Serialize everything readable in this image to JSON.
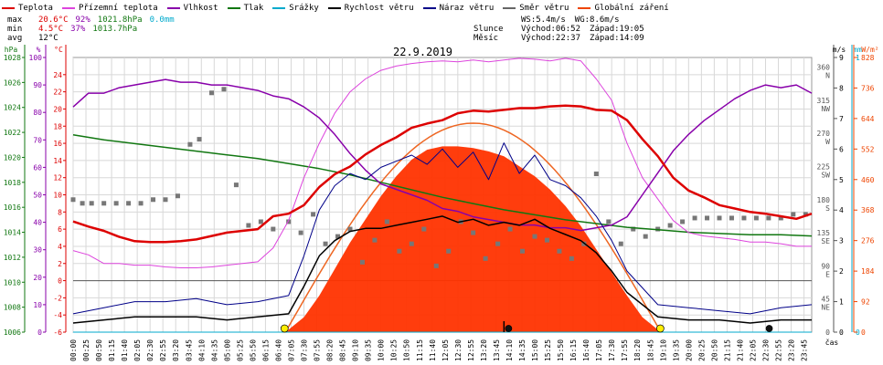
{
  "legend": [
    {
      "label": "Teplota",
      "color": "#dd0000"
    },
    {
      "label": "Přízemní teplota",
      "color": "#dd44dd"
    },
    {
      "label": "Vlhkost",
      "color": "#8800aa"
    },
    {
      "label": "Tlak",
      "color": "#117711"
    },
    {
      "label": "Srážky",
      "color": "#00aacc"
    },
    {
      "label": "Rychlost větru",
      "color": "#000000"
    },
    {
      "label": "Náraz větru",
      "color": "#000088"
    },
    {
      "label": "Směr větru",
      "color": "#666666"
    },
    {
      "label": "Globální záření",
      "color": "#ee4400"
    }
  ],
  "stats": {
    "max": {
      "label": "max",
      "temp": "20.6°C",
      "hum": "92%",
      "press": "1021.8hPa",
      "rain": "0.0mm"
    },
    "min": {
      "label": "min",
      "temp": "4.5°C",
      "hum": "37%",
      "press": "1013.7hPa"
    },
    "avg": {
      "label": "avg",
      "temp": "12°C"
    }
  },
  "astro": {
    "ws": "WS:5.4m/s",
    "wg": "WG:8.6m/s",
    "sun_label": "Slunce",
    "sunrise": "Východ:06:52",
    "sunset": "Západ:19:05",
    "moon_label": "Měsíc",
    "moonrise": "Východ:22:37",
    "moonset": "Západ:14:09"
  },
  "chart_data": {
    "type": "line",
    "title": "22.9.2019",
    "x_axis_label": "čas",
    "x_unit": "hours",
    "xlim": [
      0,
      24
    ],
    "x_tick_labels": [
      "00:00",
      "00:25",
      "00:50",
      "01:15",
      "01:40",
      "02:05",
      "02:30",
      "02:55",
      "03:20",
      "03:45",
      "04:10",
      "04:35",
      "05:00",
      "05:25",
      "05:50",
      "06:15",
      "06:40",
      "07:05",
      "07:30",
      "07:55",
      "08:20",
      "08:45",
      "09:10",
      "09:35",
      "10:00",
      "10:25",
      "10:50",
      "11:15",
      "11:40",
      "12:05",
      "12:30",
      "12:55",
      "13:20",
      "13:45",
      "14:10",
      "14:35",
      "15:00",
      "15:25",
      "15:50",
      "16:15",
      "16:40",
      "17:05",
      "17:30",
      "17:55",
      "18:20",
      "18:45",
      "19:10",
      "19:35",
      "20:00",
      "20:25",
      "20:50",
      "21:15",
      "21:40",
      "22:05",
      "22:30",
      "22:55",
      "23:20",
      "23:45"
    ],
    "axes": {
      "pressure": {
        "unit": "hPa",
        "ylim": [
          1006,
          1028
        ],
        "ticks": [
          1006,
          1008,
          1010,
          1012,
          1014,
          1016,
          1018,
          1020,
          1022,
          1024,
          1026,
          1028
        ],
        "color": "#117711"
      },
      "humidity": {
        "unit": "%",
        "ylim": [
          0,
          100
        ],
        "ticks": [
          0,
          10,
          20,
          30,
          40,
          50,
          60,
          70,
          80,
          90,
          100
        ],
        "color": "#8800aa"
      },
      "temperature": {
        "unit": "°C",
        "ylim": [
          -6,
          26
        ],
        "ticks": [
          -6,
          -4,
          -2,
          0,
          2,
          4,
          6,
          8,
          10,
          12,
          14,
          16,
          18,
          20,
          22,
          24
        ],
        "color": "#dd0000"
      },
      "wind_direction": {
        "unit": "°",
        "ticks": [
          {
            "v": 0,
            "lbl": "0"
          },
          {
            "v": 45,
            "lbl": "45 NE"
          },
          {
            "v": 90,
            "lbl": "90 E"
          },
          {
            "v": 135,
            "lbl": "135 SE"
          },
          {
            "v": 180,
            "lbl": "180 S"
          },
          {
            "v": 225,
            "lbl": "225 SW"
          },
          {
            "v": 270,
            "lbl": "270 W"
          },
          {
            "v": 315,
            "lbl": "315 NW"
          },
          {
            "v": 360,
            "lbl": "360 N"
          }
        ]
      },
      "wind_speed": {
        "unit": "m/s",
        "ylim": [
          0,
          9
        ],
        "ticks": [
          0,
          1,
          2,
          3,
          4,
          5,
          6,
          7,
          8,
          9
        ]
      },
      "rain": {
        "unit": "mm",
        "ylim": [
          0,
          1
        ],
        "ticks": [
          0,
          1
        ],
        "color": "#00aacc"
      },
      "radiation": {
        "unit": "W/m²",
        "ylim": [
          0,
          828
        ],
        "ticks": [
          0,
          92,
          184,
          276,
          368,
          460,
          552,
          644,
          736,
          828
        ],
        "color": "#ee4400"
      }
    },
    "series": [
      {
        "name": "Teplota",
        "axis": "temperature",
        "color": "#dd0000",
        "x": [
          0,
          0.5,
          1,
          1.5,
          2,
          2.5,
          3,
          3.5,
          4,
          4.5,
          5,
          5.5,
          6,
          6.5,
          7,
          7.5,
          8,
          8.5,
          9,
          9.5,
          10,
          10.5,
          11,
          11.5,
          12,
          12.5,
          13,
          13.5,
          14,
          14.5,
          15,
          15.5,
          16,
          16.5,
          17,
          17.5,
          18,
          18.5,
          19,
          19.5,
          20,
          20.5,
          21,
          21.5,
          22,
          22.5,
          23,
          23.5,
          24
        ],
        "y": [
          6.9,
          6.3,
          5.8,
          5.1,
          4.6,
          4.5,
          4.5,
          4.6,
          4.8,
          5.2,
          5.6,
          5.8,
          6.0,
          7.5,
          7.8,
          8.8,
          10.9,
          12.4,
          13.3,
          14.7,
          15.8,
          16.7,
          17.8,
          18.3,
          18.7,
          19.5,
          19.8,
          19.7,
          19.9,
          20.1,
          20.1,
          20.3,
          20.4,
          20.3,
          19.9,
          19.8,
          18.7,
          16.5,
          14.5,
          12.0,
          10.5,
          9.7,
          8.8,
          8.4,
          8.0,
          7.8,
          7.5,
          7.2,
          7.8
        ]
      },
      {
        "name": "Přízemní teplota",
        "axis": "temperature",
        "color": "#dd44dd",
        "x": [
          0,
          0.5,
          1,
          1.5,
          2,
          2.5,
          3,
          3.5,
          4,
          4.5,
          5,
          5.5,
          6,
          6.5,
          7,
          7.5,
          8,
          8.5,
          9,
          9.5,
          10,
          10.5,
          11,
          11.5,
          12,
          12.5,
          13,
          13.5,
          14,
          14.5,
          15,
          15.5,
          16,
          16.5,
          17,
          17.5,
          18,
          18.5,
          19,
          19.5,
          20,
          20.5,
          21,
          21.5,
          22,
          22.5,
          23,
          23.5,
          24
        ],
        "y": [
          3.5,
          3.0,
          2.0,
          2.0,
          1.8,
          1.8,
          1.6,
          1.5,
          1.5,
          1.6,
          1.8,
          2.0,
          2.2,
          3.8,
          7.0,
          12.0,
          16.0,
          19.5,
          22.0,
          23.5,
          24.5,
          25.0,
          25.3,
          25.5,
          25.6,
          25.5,
          25.7,
          25.5,
          25.7,
          25.9,
          25.8,
          25.6,
          25.9,
          25.6,
          23.5,
          21.0,
          16.0,
          12.0,
          9.5,
          7.0,
          5.6,
          5.2,
          5.0,
          4.8,
          4.5,
          4.5,
          4.3,
          4.0,
          4.0
        ]
      },
      {
        "name": "Vlhkost",
        "axis": "humidity",
        "color": "#8800aa",
        "x": [
          0,
          0.5,
          1,
          1.5,
          2,
          2.5,
          3,
          3.5,
          4,
          4.5,
          5,
          5.5,
          6,
          6.5,
          7,
          7.5,
          8,
          8.5,
          9,
          9.5,
          10,
          10.5,
          11,
          11.5,
          12,
          12.5,
          13,
          13.5,
          14,
          14.5,
          15,
          15.5,
          16,
          16.5,
          17,
          17.5,
          18,
          18.5,
          19,
          19.5,
          20,
          20.5,
          21,
          21.5,
          22,
          22.5,
          23,
          23.5,
          24
        ],
        "y": [
          82,
          87,
          87,
          89,
          90,
          91,
          92,
          91,
          91,
          90,
          90,
          89,
          88,
          86,
          85,
          82,
          78,
          72,
          65,
          59,
          54,
          52,
          50,
          48,
          45,
          44,
          42,
          41,
          40,
          39,
          39,
          38,
          38,
          37,
          38,
          39,
          42,
          50,
          58,
          66,
          72,
          77,
          81,
          85,
          88,
          90,
          89,
          90,
          87
        ]
      },
      {
        "name": "Tlak",
        "axis": "pressure",
        "color": "#117711",
        "x": [
          0,
          1,
          2,
          3,
          4,
          5,
          6,
          7,
          8,
          9,
          10,
          11,
          12,
          13,
          14,
          15,
          16,
          17,
          18,
          19,
          20,
          21,
          22,
          23,
          24
        ],
        "y": [
          1021.8,
          1021.4,
          1021.1,
          1020.8,
          1020.5,
          1020.2,
          1019.9,
          1019.5,
          1019.1,
          1018.6,
          1018.0,
          1017.4,
          1016.8,
          1016.3,
          1015.8,
          1015.4,
          1015.0,
          1014.7,
          1014.4,
          1014.2,
          1014.0,
          1013.9,
          1013.8,
          1013.8,
          1013.7
        ]
      },
      {
        "name": "Srážky",
        "axis": "rain",
        "color": "#00aacc",
        "x": [
          0,
          24
        ],
        "y": [
          0,
          0
        ]
      },
      {
        "name": "Rychlost větru",
        "axis": "wind_speed",
        "color": "#000000",
        "x": [
          0,
          1,
          2,
          3,
          4,
          5,
          6,
          7,
          7.5,
          8,
          8.5,
          9,
          9.5,
          10,
          10.5,
          11,
          11.5,
          12,
          12.5,
          13,
          13.5,
          14,
          14.5,
          15,
          15.5,
          16,
          16.5,
          17,
          17.5,
          18,
          19,
          20,
          21,
          22,
          23,
          24
        ],
        "y": [
          0.3,
          0.4,
          0.5,
          0.5,
          0.5,
          0.4,
          0.5,
          0.6,
          1.5,
          2.5,
          3.0,
          3.3,
          3.4,
          3.4,
          3.5,
          3.6,
          3.7,
          3.8,
          3.6,
          3.7,
          3.5,
          3.6,
          3.5,
          3.7,
          3.4,
          3.2,
          3.0,
          2.6,
          2.0,
          1.3,
          0.5,
          0.4,
          0.4,
          0.3,
          0.4,
          0.4
        ]
      },
      {
        "name": "Náraz větru",
        "axis": "wind_speed",
        "color": "#000088",
        "x": [
          0,
          1,
          2,
          3,
          4,
          5,
          6,
          7,
          7.5,
          8,
          8.5,
          9,
          9.5,
          10,
          10.5,
          11,
          11.5,
          12,
          12.5,
          13,
          13.5,
          14,
          14.5,
          15,
          15.5,
          16,
          16.5,
          17,
          17.5,
          18,
          19,
          20,
          21,
          22,
          23,
          24
        ],
        "y": [
          0.6,
          0.8,
          1.0,
          1.0,
          1.1,
          0.9,
          1.0,
          1.2,
          2.5,
          4.0,
          4.8,
          5.2,
          5.0,
          5.4,
          5.6,
          5.8,
          5.5,
          6.0,
          5.4,
          5.9,
          5.0,
          6.2,
          5.2,
          5.8,
          5.0,
          4.8,
          4.4,
          3.8,
          3.0,
          2.0,
          0.9,
          0.8,
          0.7,
          0.6,
          0.8,
          0.9
        ]
      },
      {
        "name": "Globální záření",
        "axis": "radiation",
        "color": "#ee4400",
        "x": [
          6.9,
          7.5,
          8,
          8.5,
          9,
          9.5,
          10,
          10.5,
          11,
          11.5,
          12,
          12.5,
          13,
          13.5,
          14,
          14.5,
          15,
          15.5,
          16,
          16.5,
          17,
          17.5,
          18,
          18.5,
          19.1
        ],
        "y": [
          0,
          45,
          110,
          190,
          270,
          340,
          410,
          470,
          520,
          550,
          560,
          560,
          555,
          545,
          530,
          500,
          470,
          430,
          380,
          320,
          250,
          180,
          110,
          45,
          0
        ]
      }
    ],
    "wind_direction_points": {
      "x": [
        0,
        0.3,
        0.6,
        1,
        1.4,
        1.8,
        2.2,
        2.6,
        3.0,
        3.4,
        3.8,
        4.1,
        4.5,
        4.9,
        5.3,
        5.7,
        6.1,
        6.5,
        7.0,
        7.4,
        7.8,
        8.2,
        8.6,
        9.0,
        9.4,
        9.8,
        10.2,
        10.6,
        11.0,
        11.4,
        11.8,
        12.2,
        12.6,
        13.0,
        13.4,
        13.8,
        14.2,
        14.6,
        15.0,
        15.4,
        15.8,
        16.2,
        16.6,
        17.0,
        17.4,
        17.8,
        18.2,
        18.6,
        19.0,
        19.4,
        19.8,
        20.2,
        20.6,
        21.0,
        21.4,
        21.8,
        22.2,
        22.6,
        23.0,
        23.4,
        23.8
      ],
      "y": [
        180,
        175,
        175,
        175,
        175,
        175,
        175,
        180,
        180,
        185,
        255,
        262,
        325,
        330,
        200,
        145,
        150,
        140,
        150,
        135,
        160,
        120,
        130,
        140,
        95,
        125,
        150,
        110,
        120,
        140,
        90,
        110,
        150,
        135,
        100,
        120,
        140,
        110,
        130,
        125,
        110,
        100,
        120,
        215,
        150,
        120,
        140,
        130,
        140,
        145,
        150,
        155,
        155,
        155,
        155,
        155,
        155,
        155,
        155,
        160,
        160
      ]
    },
    "markers": {
      "sunrise_x": 6.87,
      "sunset_x": 19.08,
      "moonrise_x": 22.62,
      "moonset_x": 14.15
    }
  }
}
